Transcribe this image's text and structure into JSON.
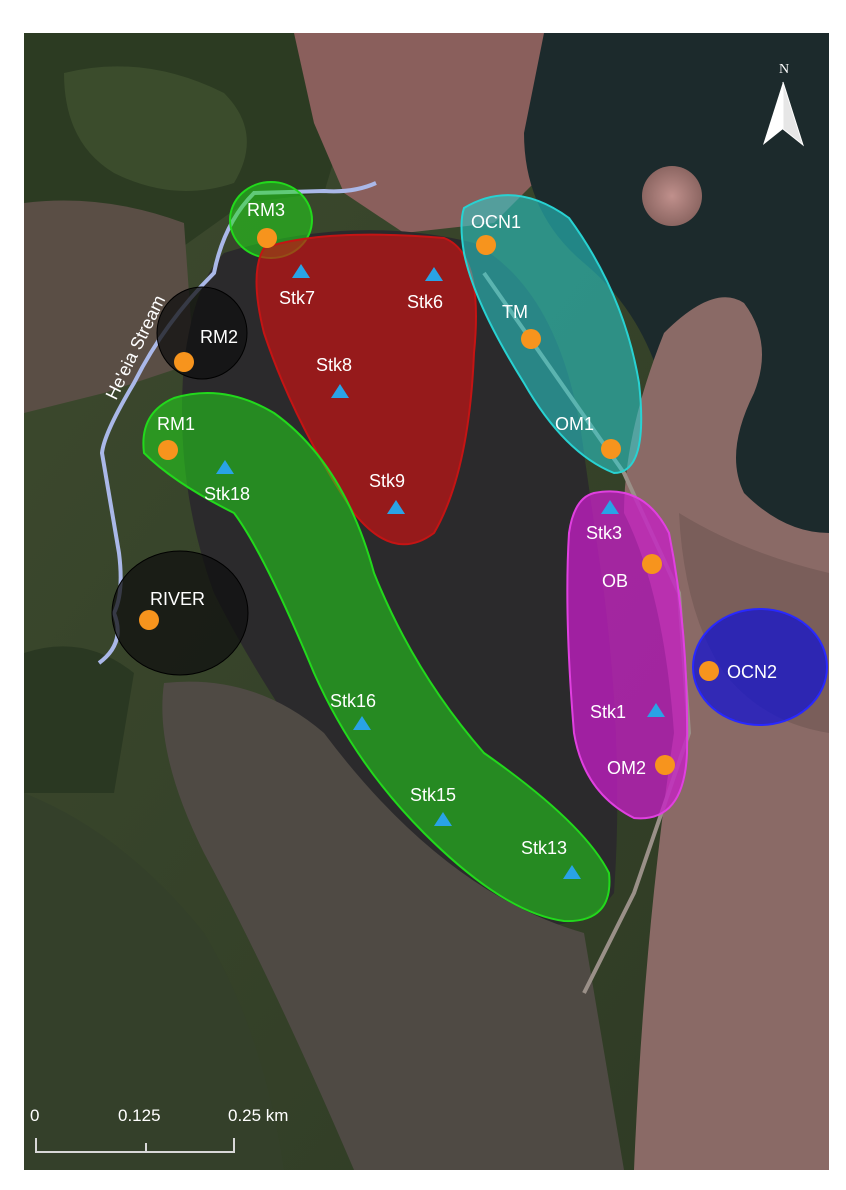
{
  "map": {
    "north_label": "N",
    "stream_label": "He'eia Stream",
    "scale": {
      "tick_0": "0",
      "tick_mid": "0.125",
      "tick_end": "0.25 km"
    },
    "colors": {
      "zone_green": "#22d91c",
      "zone_red": "#c41414",
      "zone_cyan": "#28d2d2",
      "zone_magenta": "#c81ec8",
      "zone_blue": "#1414d0",
      "zone_black": "#101010",
      "station_circle": "#f7941d",
      "station_triangle": "#29a3e6",
      "stream": "#aab8e8"
    },
    "zones": [
      {
        "id": "rm3",
        "color": "green"
      },
      {
        "id": "red",
        "color": "red"
      },
      {
        "id": "cyan",
        "color": "cyan"
      },
      {
        "id": "rm2",
        "color": "black"
      },
      {
        "id": "green-large",
        "color": "green"
      },
      {
        "id": "magenta",
        "color": "magenta"
      },
      {
        "id": "ocn2",
        "color": "blue"
      },
      {
        "id": "river",
        "color": "black"
      }
    ],
    "stations": [
      {
        "id": "rm3",
        "label": "RM3",
        "type": "circle"
      },
      {
        "id": "ocn1",
        "label": "OCN1",
        "type": "circle"
      },
      {
        "id": "tm",
        "label": "TM",
        "type": "circle"
      },
      {
        "id": "rm2",
        "label": "RM2",
        "type": "circle"
      },
      {
        "id": "om1",
        "label": "OM1",
        "type": "circle"
      },
      {
        "id": "rm1",
        "label": "RM1",
        "type": "circle"
      },
      {
        "id": "ob",
        "label": "OB",
        "type": "circle"
      },
      {
        "id": "river",
        "label": "RIVER",
        "type": "circle"
      },
      {
        "id": "ocn2",
        "label": "OCN2",
        "type": "circle"
      },
      {
        "id": "om2",
        "label": "OM2",
        "type": "circle"
      },
      {
        "id": "stk7",
        "label": "Stk7",
        "type": "triangle"
      },
      {
        "id": "stk6",
        "label": "Stk6",
        "type": "triangle"
      },
      {
        "id": "stk8",
        "label": "Stk8",
        "type": "triangle"
      },
      {
        "id": "stk18",
        "label": "Stk18",
        "type": "triangle"
      },
      {
        "id": "stk9",
        "label": "Stk9",
        "type": "triangle"
      },
      {
        "id": "stk3",
        "label": "Stk3",
        "type": "triangle"
      },
      {
        "id": "stk16",
        "label": "Stk16",
        "type": "triangle"
      },
      {
        "id": "stk1",
        "label": "Stk1",
        "type": "triangle"
      },
      {
        "id": "stk15",
        "label": "Stk15",
        "type": "triangle"
      },
      {
        "id": "stk13",
        "label": "Stk13",
        "type": "triangle"
      }
    ]
  }
}
